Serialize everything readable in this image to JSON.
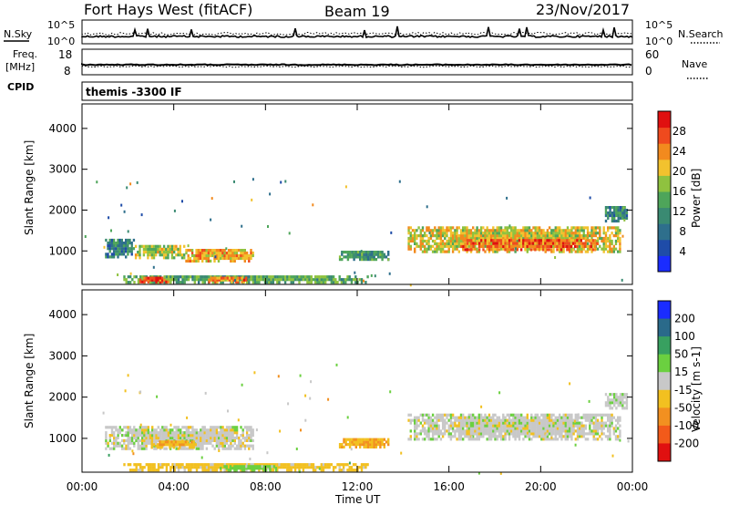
{
  "header": {
    "title": "Fort Hays West (fitACF)",
    "beam": "Beam 19",
    "date": "23/Nov/2017"
  },
  "strip_labels": {
    "nsky": "N.Sky",
    "nsearch": "N.Search",
    "freq": "Freq.",
    "freq_unit": "[MHz]",
    "nave": "Nave",
    "cpid": "CPID"
  },
  "strip_ticks": {
    "nsky_top": "10^5",
    "nsky_bottom": "10^0",
    "freq_top": "18",
    "freq_bottom": "8",
    "nave_top": "60",
    "nave_bottom": "0"
  },
  "cpid_text": "themis -3300 IF",
  "chart_data": [
    {
      "type": "heatmap",
      "title": "",
      "quantity": "Power",
      "xlabel": "Time UT",
      "ylabel": "Slant Range [km]",
      "x_ticks": [
        "00:00",
        "04:00",
        "08:00",
        "12:00",
        "16:00",
        "20:00",
        "00:00"
      ],
      "x_hours": [
        0,
        4,
        8,
        12,
        16,
        20,
        24
      ],
      "y_ticks": [
        1000,
        2000,
        3000,
        4000
      ],
      "ylim": [
        180,
        4600
      ],
      "colorbar": {
        "label": "Power [dB]",
        "ticks": [
          4,
          8,
          12,
          16,
          20,
          24,
          28
        ],
        "range": [
          0,
          32
        ],
        "colors": [
          "#1a2cff",
          "#1f4ca8",
          "#2e6f8c",
          "#3a8a72",
          "#4ea55a",
          "#8fc23f",
          "#f2c22e",
          "#f28a1e",
          "#ef4a1e",
          "#e01010"
        ]
      },
      "echo_regions": [
        {
          "t0": 1.0,
          "t1": 2.3,
          "r0": 820,
          "r1": 1300,
          "power": 10
        },
        {
          "t0": 2.3,
          "t1": 4.5,
          "r0": 800,
          "r1": 1150,
          "power": 18
        },
        {
          "t0": 4.5,
          "t1": 7.5,
          "r0": 720,
          "r1": 1050,
          "power": 22
        },
        {
          "t0": 1.8,
          "t1": 12.5,
          "r0": 200,
          "r1": 400,
          "power": 14
        },
        {
          "t0": 2.5,
          "t1": 3.8,
          "r0": 210,
          "r1": 350,
          "power": 27
        },
        {
          "t0": 5.5,
          "t1": 7.2,
          "r0": 210,
          "r1": 350,
          "power": 24
        },
        {
          "t0": 11.2,
          "t1": 13.4,
          "r0": 760,
          "r1": 1000,
          "power": 12
        },
        {
          "t0": 14.2,
          "t1": 23.5,
          "r0": 950,
          "r1": 1600,
          "power": 20
        },
        {
          "t0": 16.5,
          "t1": 22.5,
          "r0": 1000,
          "r1": 1300,
          "power": 26
        },
        {
          "t0": 22.8,
          "t1": 23.8,
          "r0": 1700,
          "r1": 2100,
          "power": 10
        }
      ]
    },
    {
      "type": "heatmap",
      "title": "",
      "quantity": "Velocity",
      "xlabel": "Time UT",
      "ylabel": "Slant Range [km]",
      "x_ticks": [
        "00:00",
        "04:00",
        "08:00",
        "12:00",
        "16:00",
        "20:00",
        "00:00"
      ],
      "x_hours": [
        0,
        4,
        8,
        12,
        16,
        20,
        24
      ],
      "y_ticks": [
        1000,
        2000,
        3000,
        4000
      ],
      "ylim": [
        180,
        4600
      ],
      "colorbar": {
        "label": "Velocity [m s-1]",
        "ticks": [
          200,
          100,
          50,
          15,
          -15,
          -50,
          -100,
          -200
        ],
        "colors": [
          "#1a2cff",
          "#2a6a8a",
          "#38a060",
          "#6bd040",
          "#c8c8c8",
          "#f2c020",
          "#f29020",
          "#f25a1a",
          "#e01010"
        ]
      },
      "echo_regions": [
        {
          "t0": 1.0,
          "t1": 7.5,
          "r0": 720,
          "r1": 1300,
          "velocity": 0
        },
        {
          "t0": 3.0,
          "t1": 5.0,
          "r0": 750,
          "r1": 950,
          "velocity": -40
        },
        {
          "t0": 1.8,
          "t1": 12.5,
          "r0": 200,
          "r1": 400,
          "velocity": -30
        },
        {
          "t0": 6.0,
          "t1": 8.5,
          "r0": 200,
          "r1": 330,
          "velocity": 30
        },
        {
          "t0": 11.2,
          "t1": 13.4,
          "r0": 760,
          "r1": 1000,
          "velocity": -45
        },
        {
          "t0": 14.2,
          "t1": 23.5,
          "r0": 950,
          "r1": 1600,
          "velocity": 0
        },
        {
          "t0": 22.8,
          "t1": 23.8,
          "r0": 1700,
          "r1": 2100,
          "velocity": 5
        }
      ]
    }
  ]
}
